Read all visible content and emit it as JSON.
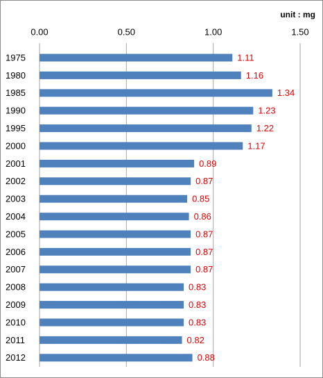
{
  "chart_data": {
    "type": "bar",
    "orientation": "horizontal",
    "annotation": "unit : mg",
    "categories": [
      "1975",
      "1980",
      "1985",
      "1990",
      "1995",
      "2000",
      "2001",
      "2002",
      "2003",
      "2004",
      "2005",
      "2006",
      "2007",
      "2008",
      "2009",
      "2010",
      "2011",
      "2012"
    ],
    "values": [
      1.11,
      1.16,
      1.34,
      1.23,
      1.22,
      1.17,
      0.89,
      0.87,
      0.85,
      0.86,
      0.87,
      0.87,
      0.87,
      0.83,
      0.83,
      0.83,
      0.82,
      0.88
    ],
    "color": "#4f81bd",
    "label_color": "#e00000",
    "xlim": [
      0,
      1.5
    ],
    "xticks": [
      {
        "value": 0,
        "label": "0.00"
      },
      {
        "value": 0.5,
        "label": "0.50"
      },
      {
        "value": 1,
        "label": "1.00"
      },
      {
        "value": 1.5,
        "label": "1.50"
      }
    ],
    "grid": true
  }
}
